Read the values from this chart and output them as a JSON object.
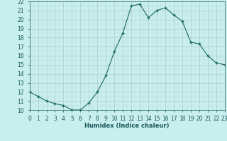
{
  "xlabel": "Humidex (Indice chaleur)",
  "ylabel": "",
  "x_values": [
    0,
    1,
    2,
    3,
    4,
    5,
    6,
    7,
    8,
    9,
    10,
    11,
    12,
    13,
    14,
    15,
    16,
    17,
    18,
    19,
    20,
    21,
    22,
    23
  ],
  "y_values": [
    12.0,
    11.5,
    11.0,
    10.7,
    10.5,
    10.0,
    10.0,
    10.8,
    12.0,
    13.8,
    16.5,
    18.5,
    21.5,
    21.7,
    20.2,
    21.0,
    21.3,
    20.5,
    19.8,
    17.5,
    17.3,
    16.0,
    15.2,
    15.0
  ],
  "line_color": "#1a6b5e",
  "marker_color": "#1a6b5e",
  "bg_color": "#c8eeee",
  "major_grid_color": "#b0c8c8",
  "minor_grid_color": "#c0dede",
  "tick_label_color": "#1a5a5a",
  "axis_label_color": "#1a5a5a",
  "ylim": [
    10,
    22
  ],
  "xlim": [
    0,
    23
  ],
  "yticks": [
    10,
    11,
    12,
    13,
    14,
    15,
    16,
    17,
    18,
    19,
    20,
    21,
    22
  ],
  "xticks": [
    0,
    1,
    2,
    3,
    4,
    5,
    6,
    7,
    8,
    9,
    10,
    11,
    12,
    13,
    14,
    15,
    16,
    17,
    18,
    19,
    20,
    21,
    22,
    23
  ],
  "xlabel_fontsize": 6.0,
  "tick_fontsize": 5.5
}
